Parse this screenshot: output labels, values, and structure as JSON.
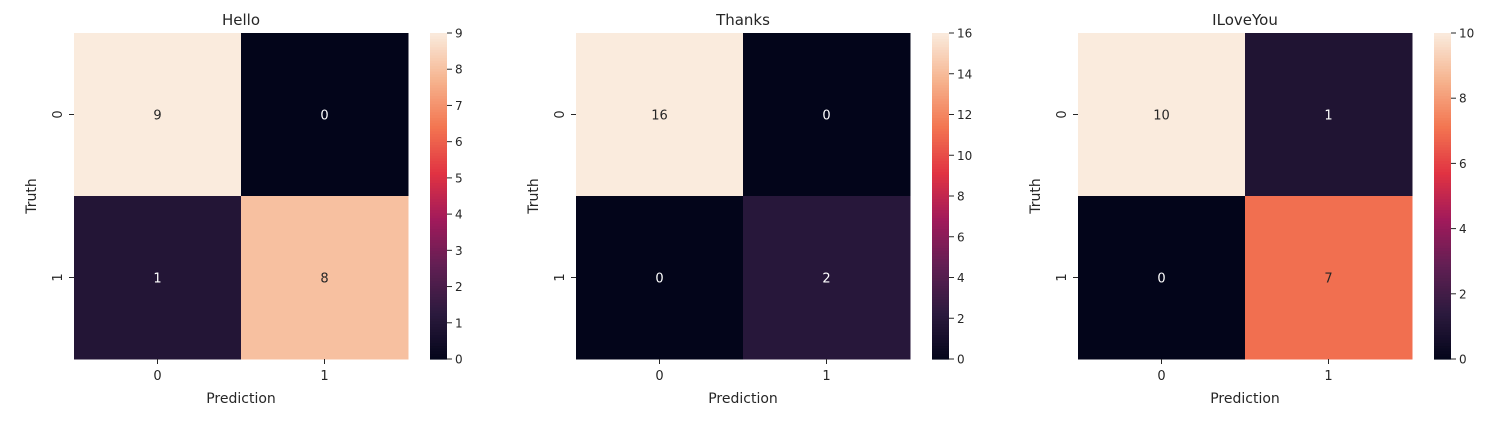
{
  "chart_data": [
    {
      "type": "heatmap",
      "title": "Hello",
      "xlabel": "Prediction",
      "ylabel": "Truth",
      "x_categories": [
        "0",
        "1"
      ],
      "y_categories": [
        "0",
        "1"
      ],
      "values": [
        [
          9,
          0
        ],
        [
          1,
          8
        ]
      ],
      "colorbar": {
        "vmin": 0,
        "vmax": 9,
        "ticks": [
          0,
          1,
          2,
          3,
          4,
          5,
          6,
          7,
          8,
          9
        ]
      }
    },
    {
      "type": "heatmap",
      "title": "Thanks",
      "xlabel": "Prediction",
      "ylabel": "Truth",
      "x_categories": [
        "0",
        "1"
      ],
      "y_categories": [
        "0",
        "1"
      ],
      "values": [
        [
          16,
          0
        ],
        [
          0,
          2
        ]
      ],
      "colorbar": {
        "vmin": 0,
        "vmax": 16,
        "ticks": [
          0,
          2,
          4,
          6,
          8,
          10,
          12,
          14,
          16
        ]
      }
    },
    {
      "type": "heatmap",
      "title": "ILoveYou",
      "xlabel": "Prediction",
      "ylabel": "Truth",
      "x_categories": [
        "0",
        "1"
      ],
      "y_categories": [
        "0",
        "1"
      ],
      "values": [
        [
          10,
          1
        ],
        [
          0,
          7
        ]
      ],
      "colorbar": {
        "vmin": 0,
        "vmax": 10,
        "ticks": [
          0,
          2,
          4,
          6,
          8,
          10
        ]
      }
    }
  ],
  "colormap": "rocket",
  "colormap_stops": [
    "#03051a",
    "#2c1a3e",
    "#611f53",
    "#a11a5b",
    "#e13342",
    "#f37651",
    "#f6b48f",
    "#faebdd"
  ]
}
